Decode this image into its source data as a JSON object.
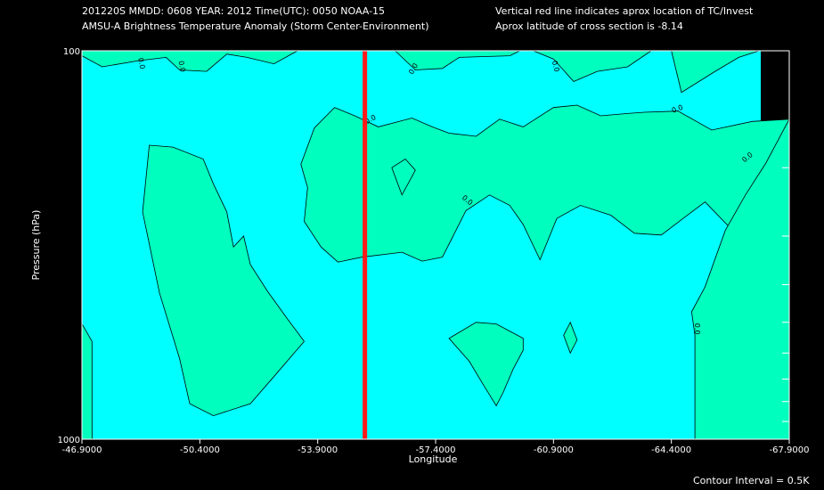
{
  "header": {
    "line1": "201220S  MMDD: 0608 YEAR: 2012 Time(UTC): 0050 NOAA-15",
    "line2": "AMSU-A Brightness Temperature Anomaly (Storm Center-Environment)",
    "note1": "Vertical red line indicates aprox location of TC/Invest",
    "note2": "Aprox latitude of cross section is -8.14"
  },
  "footer": {
    "contour_interval": "Contour Interval = 0.5K"
  },
  "colors": {
    "background": "#000000",
    "cyan_fill": "#00ffff",
    "green_fill": "#00ffbf",
    "marker": "#ff1a1a",
    "contour": "#000000",
    "text": "#ffffff"
  },
  "chart_data": {
    "type": "contour",
    "title": "AMSU-A Brightness Temperature Anomaly (Storm Center-Environment)",
    "xlabel": "Longitude",
    "ylabel": "Pressure (hPa)",
    "xlim": [
      -46.9,
      -67.9
    ],
    "ylim": [
      1000,
      100
    ],
    "y_scale": "log",
    "x_ticks": [
      "-46.9000",
      "-50.4000",
      "-53.9000",
      "-57.4000",
      "-60.9000",
      "-64.4000",
      "-67.9000"
    ],
    "x_tick_values": [
      -46.9,
      -50.4,
      -53.9,
      -57.4,
      -60.9,
      -64.4,
      -67.9
    ],
    "y_ticks": [
      "100",
      "1000"
    ],
    "y_tick_values": [
      100,
      1000
    ],
    "y_minor_ticks": [
      200,
      300,
      400,
      500,
      600,
      700,
      800,
      900
    ],
    "contour_label": "0.0",
    "contour_interval": "0.5K",
    "marker_longitude": -55.3,
    "regions": [
      {
        "name": "top-band",
        "color": "green",
        "points": [
          [
            -46.9,
            100
          ],
          [
            -46.9,
            103
          ],
          [
            -47.5,
            110
          ],
          [
            -48.6,
            106
          ],
          [
            -49.4,
            104
          ],
          [
            -49.8,
            112
          ],
          [
            -50.6,
            113
          ],
          [
            -51.2,
            102
          ],
          [
            -51.8,
            104
          ],
          [
            -52.6,
            108
          ],
          [
            -53.3,
            100
          ]
        ]
      },
      {
        "name": "top-mid",
        "color": "green",
        "points": [
          [
            -56.2,
            100
          ],
          [
            -56.8,
            112
          ],
          [
            -57.6,
            111
          ],
          [
            -58.1,
            104
          ],
          [
            -59.6,
            103
          ],
          [
            -59.9,
            100
          ]
        ]
      },
      {
        "name": "top-right",
        "color": "green",
        "points": [
          [
            -60.3,
            100
          ],
          [
            -60.9,
            105
          ],
          [
            -61.5,
            120
          ],
          [
            -62.2,
            113
          ],
          [
            -63.1,
            110
          ],
          [
            -63.8,
            100
          ]
        ]
      },
      {
        "name": "upper-right-strip",
        "color": "green",
        "points": [
          [
            -64.4,
            100
          ],
          [
            -64.7,
            128
          ],
          [
            -65.7,
            113
          ],
          [
            -66.4,
            104
          ],
          [
            -67.0,
            100
          ]
        ]
      },
      {
        "name": "left-strip",
        "color": "green",
        "points": [
          [
            -46.9,
            505
          ],
          [
            -47.2,
            560
          ],
          [
            -47.2,
            1000
          ],
          [
            -46.9,
            1000
          ]
        ]
      },
      {
        "name": "left-blob",
        "color": "green",
        "points": [
          [
            -48.9,
            175
          ],
          [
            -48.7,
            260
          ],
          [
            -49.2,
            420
          ],
          [
            -49.8,
            620
          ],
          [
            -50.1,
            810
          ],
          [
            -50.8,
            870
          ],
          [
            -51.9,
            810
          ],
          [
            -52.6,
            690
          ],
          [
            -53.2,
            600
          ],
          [
            -53.5,
            560
          ],
          [
            -53.0,
            490
          ],
          [
            -52.4,
            415
          ],
          [
            -51.9,
            355
          ],
          [
            -51.7,
            300
          ],
          [
            -51.4,
            320
          ],
          [
            -51.2,
            260
          ],
          [
            -50.8,
            220
          ],
          [
            -50.5,
            190
          ],
          [
            -49.6,
            177
          ]
        ]
      },
      {
        "name": "middle-band",
        "color": "green",
        "points": [
          [
            -53.4,
            196
          ],
          [
            -53.6,
            225
          ],
          [
            -53.5,
            275
          ],
          [
            -54.0,
            320
          ],
          [
            -54.5,
            350
          ],
          [
            -55.2,
            340
          ],
          [
            -56.4,
            330
          ],
          [
            -57.0,
            348
          ],
          [
            -57.6,
            340
          ],
          [
            -58.3,
            258
          ],
          [
            -59.0,
            235
          ],
          [
            -59.6,
            250
          ],
          [
            -60.0,
            280
          ],
          [
            -60.5,
            345
          ],
          [
            -61.0,
            270
          ],
          [
            -61.7,
            250
          ],
          [
            -62.6,
            265
          ],
          [
            -63.3,
            295
          ],
          [
            -64.1,
            298
          ],
          [
            -64.8,
            268
          ],
          [
            -65.4,
            245
          ],
          [
            -66.3,
            295
          ],
          [
            -67.0,
            310
          ],
          [
            -67.9,
            320
          ],
          [
            -67.9,
            150
          ],
          [
            -66.8,
            152
          ],
          [
            -65.6,
            160
          ],
          [
            -64.6,
            143
          ],
          [
            -63.6,
            144
          ],
          [
            -63.1,
            145
          ],
          [
            -62.3,
            147
          ],
          [
            -61.6,
            138
          ],
          [
            -60.9,
            140
          ],
          [
            -60.0,
            157
          ],
          [
            -59.3,
            150
          ],
          [
            -58.6,
            166
          ],
          [
            -57.8,
            163
          ],
          [
            -57.3,
            157
          ],
          [
            -56.7,
            149
          ],
          [
            -55.7,
            157
          ],
          [
            -55.0,
            147
          ],
          [
            -54.4,
            140
          ],
          [
            -53.8,
            158
          ]
        ]
      },
      {
        "name": "small-spot",
        "color": "green",
        "points": [
          [
            -56.1,
            200
          ],
          [
            -56.5,
            190
          ],
          [
            -56.8,
            203
          ],
          [
            -56.4,
            235
          ]
        ]
      },
      {
        "name": "lower-blob",
        "color": "green",
        "points": [
          [
            -57.8,
            550
          ],
          [
            -58.4,
            630
          ],
          [
            -58.8,
            720
          ],
          [
            -59.2,
            820
          ],
          [
            -59.4,
            760
          ],
          [
            -59.7,
            660
          ],
          [
            -60.0,
            590
          ],
          [
            -60.0,
            550
          ],
          [
            -59.2,
            505
          ],
          [
            -58.6,
            500
          ]
        ]
      },
      {
        "name": "small-diamond",
        "color": "green",
        "points": [
          [
            -61.2,
            540
          ],
          [
            -61.4,
            500
          ],
          [
            -61.6,
            555
          ],
          [
            -61.4,
            600
          ]
        ]
      },
      {
        "name": "right-strip",
        "color": "green",
        "points": [
          [
            -67.9,
            150
          ],
          [
            -67.2,
            195
          ],
          [
            -66.6,
            235
          ],
          [
            -66.0,
            290
          ],
          [
            -65.4,
            405
          ],
          [
            -65.0,
            470
          ],
          [
            -65.1,
            540
          ],
          [
            -65.1,
            1000
          ],
          [
            -67.9,
            1000
          ]
        ]
      }
    ]
  }
}
